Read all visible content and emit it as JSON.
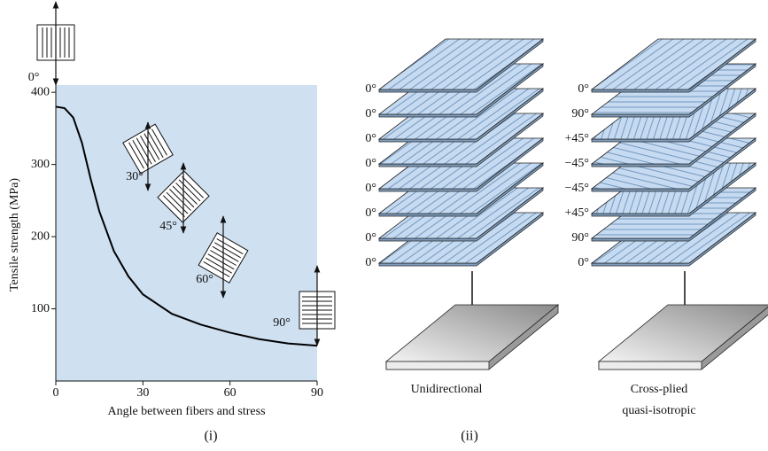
{
  "chart_data": {
    "type": "line",
    "x": [
      0,
      3,
      6,
      9,
      12,
      15,
      20,
      25,
      30,
      40,
      50,
      60,
      70,
      80,
      90
    ],
    "values": [
      380,
      378,
      365,
      330,
      280,
      235,
      180,
      145,
      120,
      93,
      78,
      67,
      58,
      52,
      49
    ],
    "color": "#000000",
    "xlim": [
      0,
      90
    ],
    "ylim": [
      0,
      410
    ],
    "xticks": [
      0,
      30,
      60,
      90
    ],
    "yticks": [
      100,
      200,
      300,
      400
    ],
    "xlabel": "Angle between fibers and stress",
    "ylabel": "Tensile strength (MPa)",
    "annotations": [
      "0°",
      "30°",
      "45°",
      "60°",
      "90°"
    ],
    "caption": "(i)"
  },
  "diagram": {
    "caption": "(ii)",
    "stacks": [
      {
        "plies": [
          "0°",
          "0°",
          "0°",
          "0°",
          "0°",
          "0°",
          "0°",
          "0°"
        ],
        "label": [
          "Unidirectional"
        ]
      },
      {
        "plies": [
          "0°",
          "90°",
          "+45°",
          "−45°",
          "−45°",
          "+45°",
          "90°",
          "0°"
        ],
        "label": [
          "Cross-plied",
          "quasi-isotropic"
        ]
      }
    ]
  }
}
